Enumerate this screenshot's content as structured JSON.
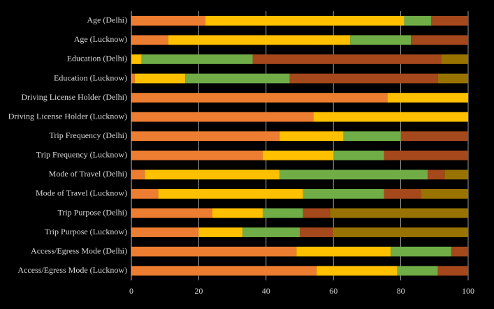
{
  "chart_data": {
    "type": "stacked-barh",
    "categories": [
      "Age (Delhi)",
      "Age (Lucknow)",
      "Education (Delhi)",
      "Education (Lucknow)",
      "Driving License Holder (Delhi)",
      "Driving License Holder (Lucknow)",
      "Trip Frequency (Delhi)",
      "Trip Frequency (Lucknow)",
      "Mode of Travel (Delhi)",
      "Mode of Travel (Lucknow)",
      "Trip Purpose (Delhi)",
      "Trip Purpose (Lucknow)",
      "Access/Egress Mode (Delhi)",
      "Access/Egress Mode (Lucknow)"
    ],
    "series": [
      {
        "color": "#ed7d31",
        "values": [
          22,
          11,
          null,
          1,
          76,
          54,
          44,
          39,
          4,
          8,
          24,
          20,
          49,
          55
        ]
      },
      {
        "color": "#ffc000",
        "values": [
          59,
          54,
          3,
          15,
          24,
          46,
          19,
          21,
          40,
          43,
          15,
          13,
          28,
          24
        ]
      },
      {
        "color": "#70ad47",
        "values": [
          8,
          18,
          33,
          31,
          null,
          null,
          17,
          15,
          44,
          24,
          12,
          17,
          18,
          12
        ]
      },
      {
        "color": "#a5481c",
        "values": [
          11,
          17,
          56,
          44,
          null,
          null,
          20,
          25,
          5,
          11,
          8,
          10,
          5,
          9
        ]
      },
      {
        "color": "#997300",
        "values": [
          null,
          null,
          8,
          9,
          null,
          null,
          null,
          null,
          7,
          14,
          41,
          40,
          null,
          null
        ]
      }
    ],
    "xlim": [
      0,
      100
    ],
    "xticks": [
      0,
      20,
      40,
      60,
      80,
      100
    ],
    "grid": true
  }
}
